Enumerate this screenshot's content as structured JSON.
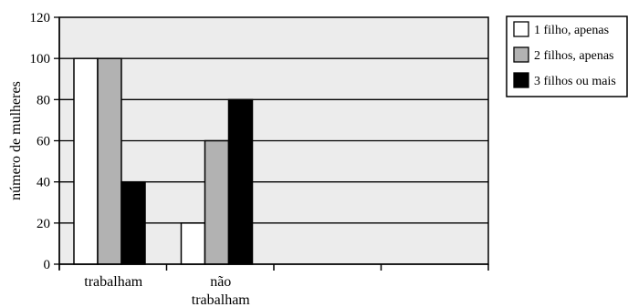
{
  "chart_data": {
    "type": "bar",
    "title": "",
    "xlabel": "",
    "ylabel": "número de mulheres",
    "ylim": [
      0,
      120
    ],
    "yticks": [
      0,
      20,
      40,
      60,
      80,
      100,
      120
    ],
    "grid": true,
    "legend_position": "top-right",
    "categories": [
      {
        "lines": [
          "trabalham"
        ]
      },
      {
        "lines": [
          "não",
          "trabalham"
        ]
      },
      {
        "lines": []
      },
      {
        "lines": []
      }
    ],
    "series": [
      {
        "name": "1 filho, apenas",
        "color": "#ffffff",
        "values": [
          100,
          20,
          null,
          null
        ]
      },
      {
        "name": "2 filhos, apenas",
        "color": "#b2b2b2",
        "values": [
          100,
          60,
          null,
          null
        ]
      },
      {
        "name": "3 filhos ou mais",
        "color": "#000000",
        "values": [
          40,
          80,
          null,
          null
        ]
      }
    ],
    "plot_background": "#ececec"
  }
}
